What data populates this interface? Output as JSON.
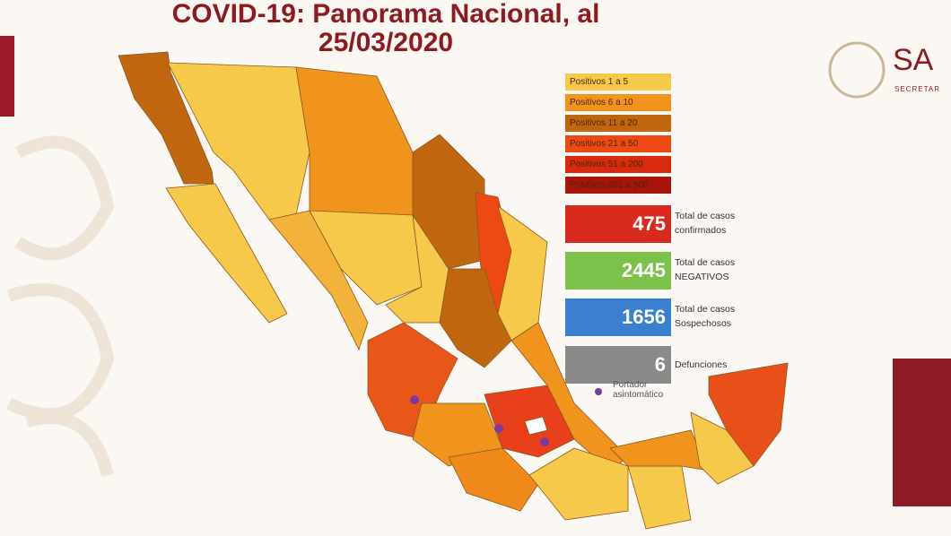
{
  "header": {
    "title_lines": [
      "COVID-19: Panorama Nacional, al",
      "25/03/2020"
    ],
    "logo_text": "SA",
    "logo_subtext": "SECRETAR"
  },
  "legend": [
    {
      "label": "Positivos 1 a 5",
      "color": "#f6c94a"
    },
    {
      "label": "Positivos 6 a 10",
      "color": "#f0941e"
    },
    {
      "label": "Positivos 11 a 20",
      "color": "#c0660f"
    },
    {
      "label": "Positivos 21 a 50",
      "color": "#ec4a12"
    },
    {
      "label": "Positivos 51 a 200",
      "color": "#d92a10"
    },
    {
      "label": "Positivos 201 a 500",
      "color": "#a8140c"
    }
  ],
  "stats": [
    {
      "value": "475",
      "label_lines": [
        "Total de casos",
        "confirmados"
      ],
      "color": "#d92a20"
    },
    {
      "value": "2445",
      "label_lines": [
        "Total de casos",
        "NEGATIVOS"
      ],
      "color": "#7cc24a"
    },
    {
      "value": "1656",
      "label_lines": [
        "Total de casos",
        "Sospechosos"
      ],
      "color": "#3a7fd0"
    },
    {
      "value": "6",
      "label_lines": [
        "Defunciones"
      ],
      "color": "#8a8a8a"
    }
  ],
  "marker_note": {
    "lines": [
      "Portador",
      "asintomático"
    ]
  }
}
